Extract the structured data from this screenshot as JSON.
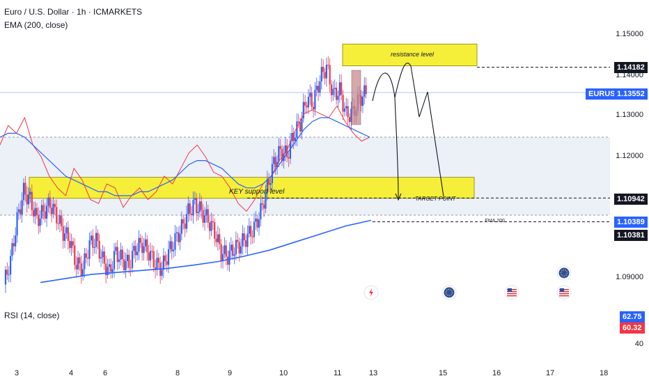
{
  "header": {
    "title": "Euro / U.S. Dollar · 1h · ICMARKETS",
    "indicator": "EMA (200, close)",
    "rsi_label": "RSI (14, close)"
  },
  "labels": {
    "resistance": "resistance level",
    "support": "KEY support level",
    "target": "TARGET POINT",
    "ema": "EMA 200",
    "symbol": "EURUSD"
  },
  "price_tags": {
    "resistance": "1.14182",
    "current": "1.13552",
    "target": "1.10942",
    "ema_a": "1.10389",
    "ema_b": "1.10381",
    "rsi_a": "62.75",
    "rsi_b": "60.32"
  },
  "colors": {
    "up": "#2962ff",
    "down": "#f23645",
    "ema": "#2962ff",
    "zone": "#f5ef3a",
    "rsi_line": "#f23645",
    "rsi_ma": "#2962ff",
    "rsi_band": "#dde3f0",
    "current_tag": "#2962ff",
    "dark_tag": "#131722"
  },
  "icons": [
    "lightning-event-icon",
    "eu-flag-icon",
    "us-flag-icon",
    "eu-flag-icon",
    "us-flag-icon"
  ],
  "chart_data": {
    "type": "candlestick",
    "symbol": "EURUSD",
    "timeframe": "1h",
    "x_ticks": [
      "3",
      "4",
      "6",
      "8",
      "9",
      "10",
      "11",
      "13",
      "15",
      "16",
      "17",
      "18"
    ],
    "y_ticks": [
      "1.15000",
      "1.14000",
      "1.13000",
      "1.12000",
      "1.09000"
    ],
    "ylim": [
      1.0855,
      1.1535
    ],
    "levels": {
      "resistance": 1.14182,
      "target": 1.10942,
      "ema200": 1.10389,
      "current": 1.13552
    },
    "zones": [
      {
        "label": "resistance level",
        "low": 1.1418,
        "high": 1.1472
      },
      {
        "label": "KEY support level",
        "low": 1.109,
        "high": 1.1142
      }
    ],
    "price_path": [
      1.088,
      1.094,
      1.104,
      1.111,
      1.109,
      1.104,
      1.106,
      1.108,
      1.105,
      1.101,
      1.099,
      1.093,
      1.092,
      1.098,
      1.099,
      1.094,
      1.091,
      1.096,
      1.094,
      1.093,
      1.097,
      1.098,
      1.096,
      1.093,
      1.092,
      1.096,
      1.099,
      1.102,
      1.106,
      1.108,
      1.106,
      1.104,
      1.101,
      1.096,
      1.095,
      1.097,
      1.098,
      1.1,
      1.102,
      1.106,
      1.112,
      1.118,
      1.121,
      1.12,
      1.125,
      1.128,
      1.134,
      1.133,
      1.139,
      1.142,
      1.135,
      1.136,
      1.13,
      1.1305,
      1.134,
      1.1355
    ],
    "ema_path": [
      1.0885,
      1.0895,
      1.0905,
      1.091,
      1.0915,
      1.092,
      1.0928,
      1.0937,
      1.095,
      1.0965,
      1.0985,
      1.1005,
      1.1025,
      1.1039
    ],
    "rsi": {
      "ylim": [
        30,
        80
      ],
      "band": [
        40,
        60
      ],
      "ticks": [
        40
      ],
      "values": [
        58,
        63,
        61,
        65,
        58,
        55,
        50,
        47,
        45,
        52,
        49,
        44,
        43,
        48,
        47,
        42,
        45,
        47,
        44,
        46,
        50,
        48,
        52,
        56,
        58,
        55,
        51,
        50,
        47,
        43,
        41,
        44,
        48,
        50,
        54,
        57,
        62,
        66,
        67,
        66,
        65,
        68,
        64,
        61,
        59,
        60
      ],
      "ma_values": [
        60,
        61,
        61,
        60,
        58,
        56,
        54,
        52,
        50,
        49,
        48,
        47,
        46,
        46,
        45,
        45,
        45,
        46,
        46,
        47,
        48,
        49,
        51,
        53,
        54,
        54,
        53,
        52,
        50,
        48,
        47,
        47,
        48,
        50,
        53,
        56,
        59,
        62,
        64,
        65,
        65,
        64,
        63,
        62,
        61,
        60
      ]
    },
    "projection": "price rises to resistance, then falls to target point"
  }
}
